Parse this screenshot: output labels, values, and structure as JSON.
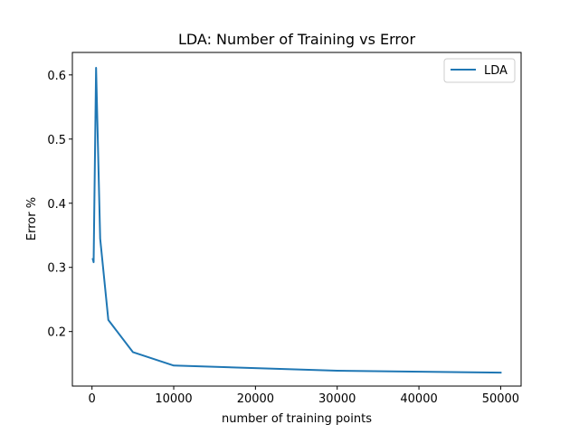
{
  "chart_data": {
    "type": "line",
    "title": "LDA: Number of Training vs Error",
    "xlabel": "number of training points",
    "ylabel": "Error %",
    "xlim": [
      -2400,
      52500
    ],
    "ylim": [
      0.115,
      0.635
    ],
    "xticks": [
      0,
      10000,
      20000,
      30000,
      40000,
      50000
    ],
    "xtick_labels": [
      "0",
      "10000",
      "20000",
      "30000",
      "40000",
      "50000"
    ],
    "yticks": [
      0.2,
      0.3,
      0.4,
      0.5,
      0.6
    ],
    "ytick_labels": [
      "0.2",
      "0.3",
      "0.4",
      "0.5",
      "0.6"
    ],
    "grid": false,
    "legend": {
      "position": "top-right"
    },
    "series": [
      {
        "name": "LDA",
        "color": "#1f77b4",
        "x": [
          100,
          200,
          500,
          1000,
          2000,
          5000,
          10000,
          30000,
          50000
        ],
        "y": [
          0.313,
          0.308,
          0.611,
          0.345,
          0.218,
          0.168,
          0.147,
          0.139,
          0.136
        ]
      }
    ]
  }
}
